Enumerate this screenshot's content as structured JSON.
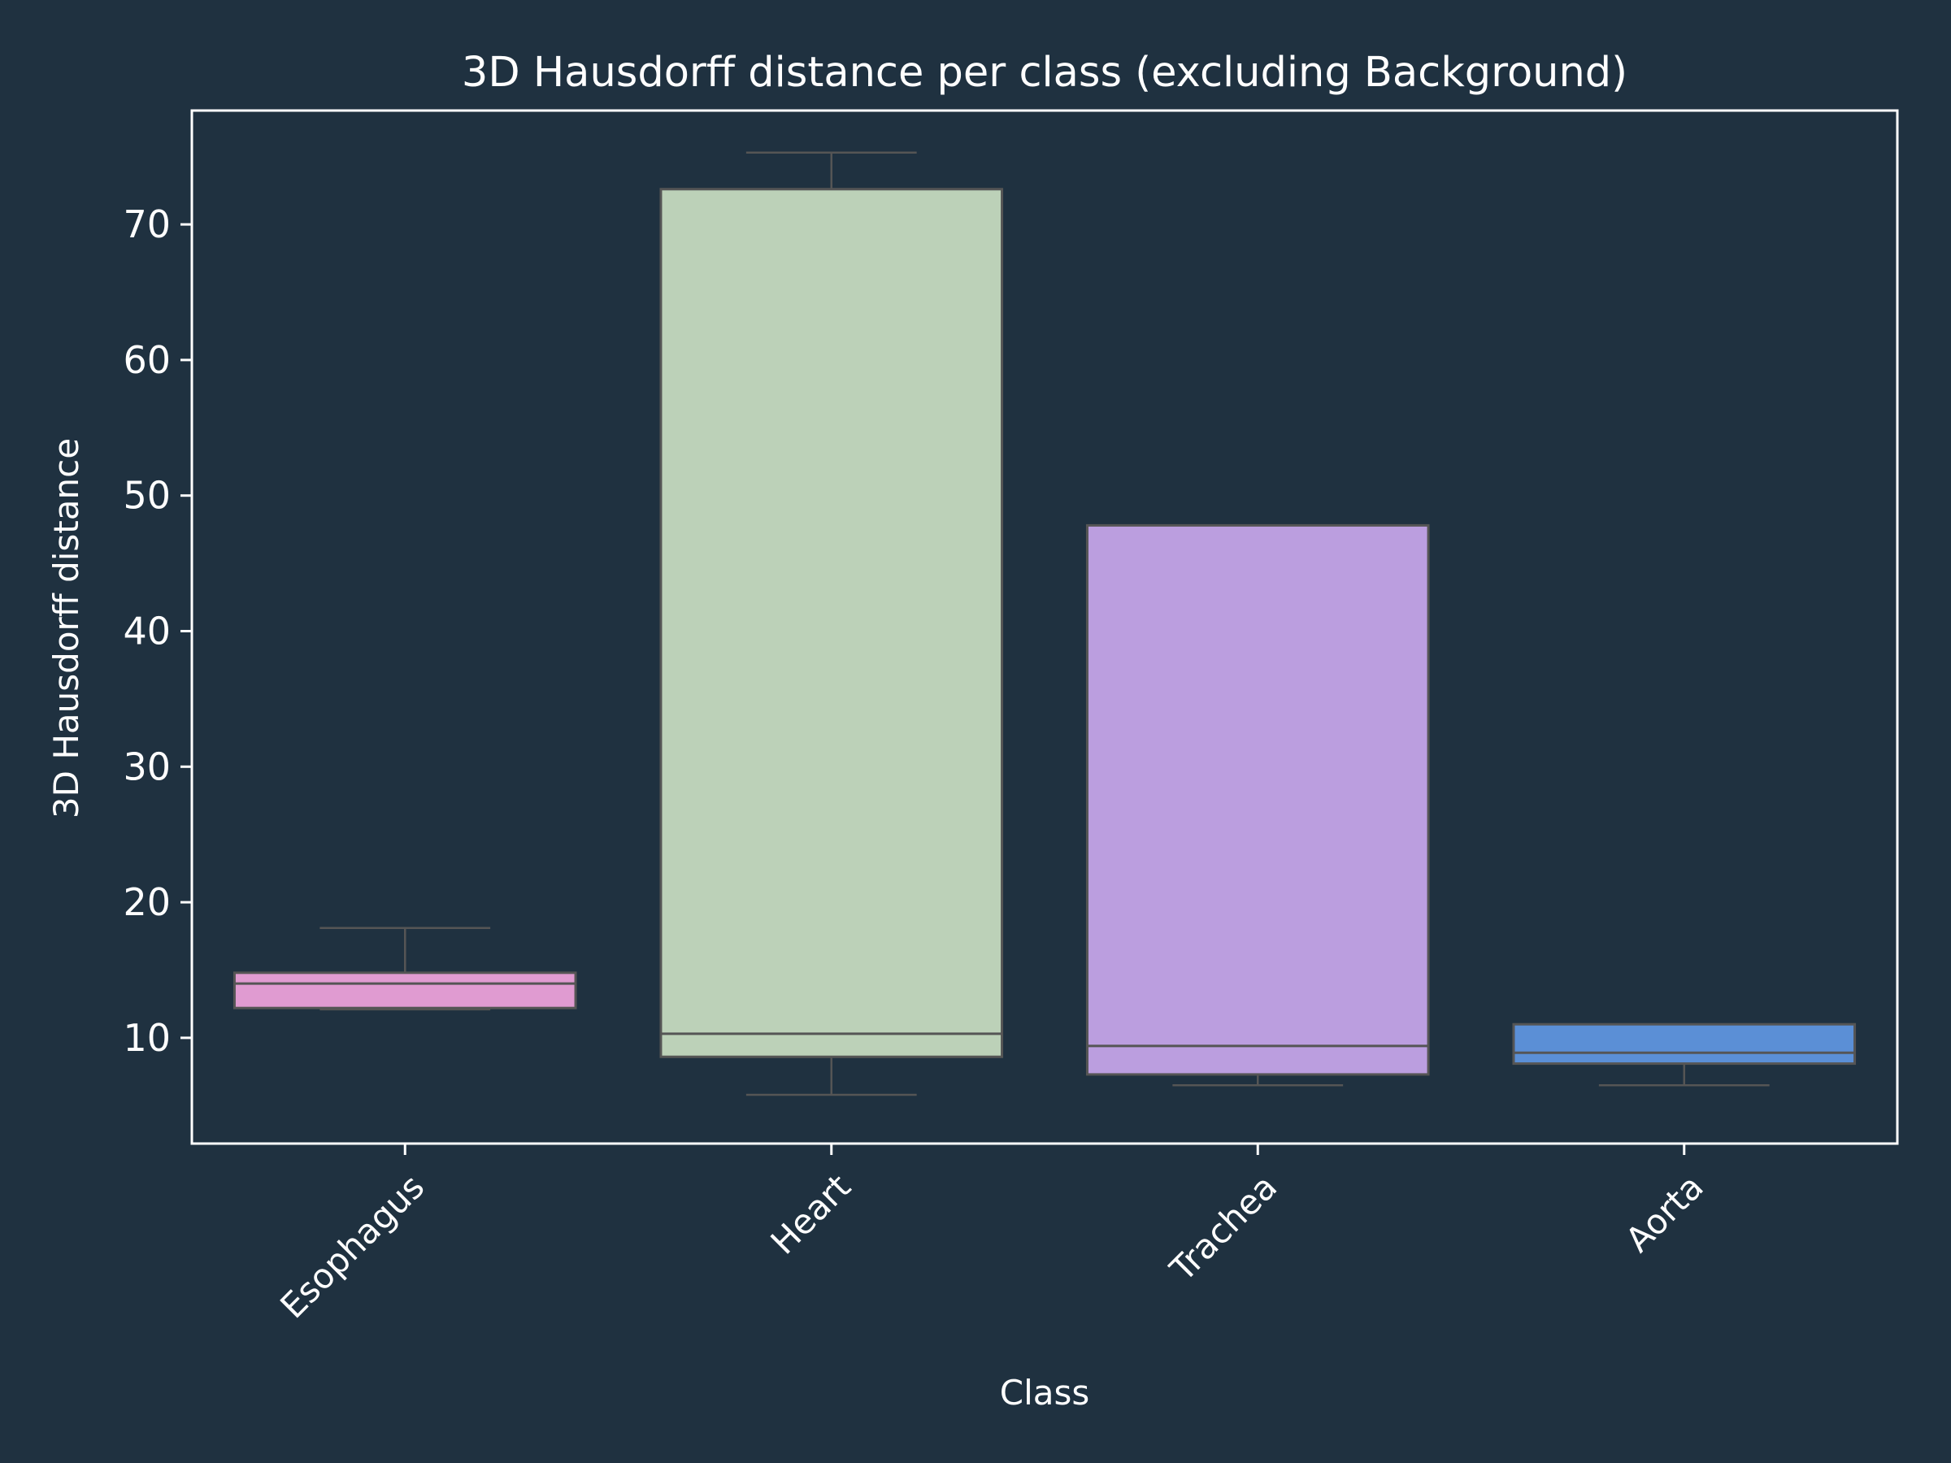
{
  "chart_data": {
    "type": "box",
    "title": "3D Hausdorff distance per class (excluding Background)",
    "xlabel": "Class",
    "ylabel": "3D Hausdorff distance",
    "ylim": [
      2.2,
      78.4
    ],
    "yticks": [
      10,
      20,
      30,
      40,
      50,
      60,
      70
    ],
    "grid": false,
    "legend": "none",
    "categories": [
      "Esophagus",
      "Heart",
      "Trachea",
      "Aorta"
    ],
    "boxes": [
      {
        "category": "Esophagus",
        "whisker_low": 12.1,
        "q1": 12.2,
        "median": 14.0,
        "q3": 14.8,
        "whisker_high": 18.1,
        "color": "#e09bd1"
      },
      {
        "category": "Heart",
        "whisker_low": 5.8,
        "q1": 8.6,
        "median": 10.3,
        "q3": 72.6,
        "whisker_high": 75.3,
        "color": "#bcd1b8"
      },
      {
        "category": "Trachea",
        "whisker_low": 6.5,
        "q1": 7.3,
        "median": 9.4,
        "q3": 47.8,
        "whisker_high": 47.8,
        "color": "#bb9edf"
      },
      {
        "category": "Aorta",
        "whisker_low": 6.5,
        "q1": 8.1,
        "median": 8.9,
        "q3": 11.0,
        "whisker_high": 11.0,
        "color": "#5b8fd6"
      }
    ],
    "colors": {
      "background": "#1f3140",
      "axes": "#ffffff",
      "box_edge": "#555555",
      "text": "#ffffff"
    }
  }
}
